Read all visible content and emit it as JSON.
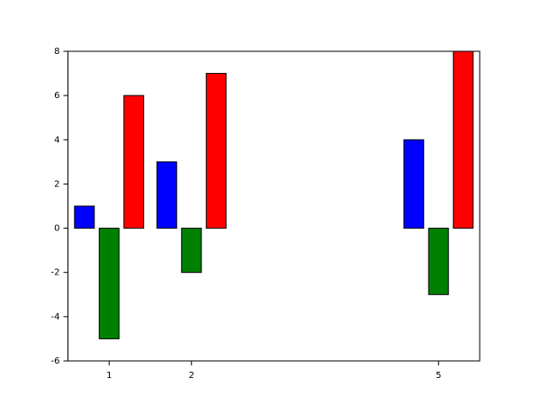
{
  "chart_data": {
    "type": "bar",
    "x": [
      1,
      2,
      5
    ],
    "series": [
      {
        "color": "#0000ff",
        "values": [
          1,
          3,
          4
        ]
      },
      {
        "color": "#008000",
        "values": [
          -5,
          -2,
          -3
        ]
      },
      {
        "color": "#ff0000",
        "values": [
          6,
          7,
          8
        ]
      }
    ],
    "xlim": [
      0.5,
      5.5
    ],
    "xticks": [
      1,
      2,
      5
    ],
    "ylim": [
      -6,
      8
    ],
    "yticks": [
      -6,
      -4,
      -2,
      0,
      2,
      4,
      6,
      8
    ]
  }
}
